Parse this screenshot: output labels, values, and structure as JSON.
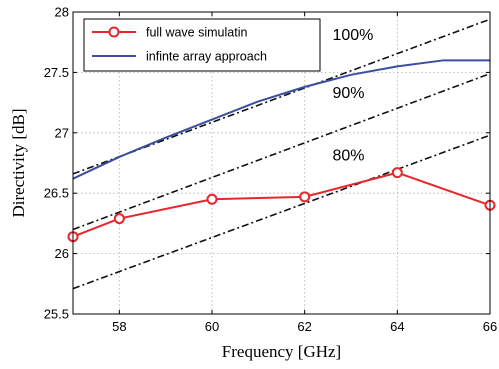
{
  "chart_data": {
    "type": "line",
    "title": "",
    "xlabel": "Frequency [GHz]",
    "ylabel": "Directivity [dB]",
    "xlim": [
      57,
      66
    ],
    "ylim": [
      25.5,
      28
    ],
    "xticks": [
      58,
      60,
      62,
      64,
      66
    ],
    "yticks": [
      25.5,
      26,
      26.5,
      27,
      27.5,
      28
    ],
    "xtick_labels": [
      "58",
      "60",
      "62",
      "64",
      "66"
    ],
    "ytick_labels": [
      "25.5",
      "26",
      "26.5",
      "27",
      "27.5",
      "28"
    ],
    "grid": true,
    "legend_position": "top-left",
    "series": [
      {
        "name": "full wave simulatin",
        "color": "#e8262b",
        "marker": "circle",
        "x": [
          57,
          58,
          60,
          62,
          64,
          66
        ],
        "y": [
          26.14,
          26.29,
          26.45,
          26.47,
          26.67,
          26.4
        ]
      },
      {
        "name": "infinte array approach",
        "color": "#3b4fa0",
        "marker": "none",
        "x": [
          57,
          58,
          59,
          60,
          61,
          62,
          63,
          64,
          65,
          66
        ],
        "y": [
          26.62,
          26.8,
          26.96,
          27.11,
          27.26,
          27.38,
          27.48,
          27.55,
          27.6,
          27.6
        ]
      }
    ],
    "reference_lines": [
      {
        "label": "100%",
        "x": [
          57,
          66
        ],
        "y": [
          26.66,
          27.94
        ]
      },
      {
        "label": "90%",
        "x": [
          57,
          66
        ],
        "y": [
          26.2,
          27.49
        ]
      },
      {
        "label": "80%",
        "x": [
          57,
          66
        ],
        "y": [
          25.71,
          26.98
        ]
      }
    ],
    "annotations": [
      {
        "text": "100%",
        "x": 62.6,
        "y": 27.77
      },
      {
        "text": "90%",
        "x": 62.6,
        "y": 27.29
      },
      {
        "text": "80%",
        "x": 62.6,
        "y": 26.77
      }
    ]
  }
}
